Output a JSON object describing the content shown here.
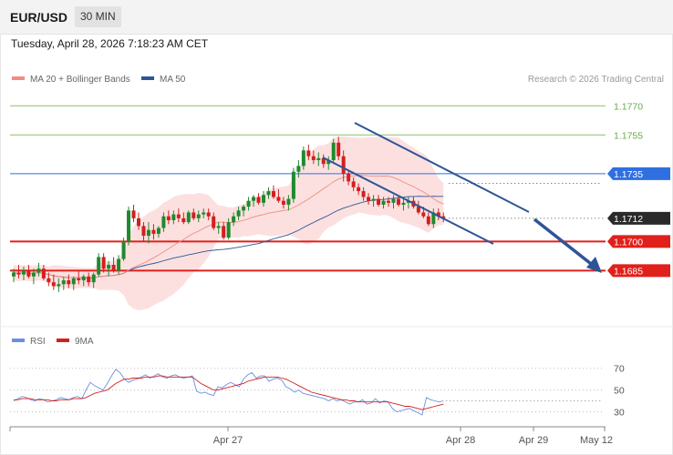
{
  "header": {
    "symbol": "EUR/USD",
    "timeframe": "30 MIN",
    "datetime": "Tuesday, April 28, 2026 7:18:23 AM CET"
  },
  "legend": {
    "ma20": "MA 20 + Bollinger Bands",
    "ma50": "MA 50",
    "copyright": "Research © 2026 Trading Central"
  },
  "colors": {
    "ma20": "#f28b82",
    "ma50": "#2d5596",
    "band": "#fbd6d6",
    "bull": "#1e8a2e",
    "bear": "#d21f1f",
    "resistance": "#8cc06a",
    "pivot": "#2f6fe0",
    "support": "#e0201b",
    "channel": "#2d5596",
    "rsi": "#6b8fe0",
    "rsi_ma": "#d21f1f"
  },
  "chart_data": [
    {
      "type": "candlestick",
      "symbol": "EUR/USD",
      "timeframe": "30 MIN",
      "x_tick_labels": [
        "Apr 27",
        "Apr 28",
        "Apr 29",
        "May 12"
      ],
      "ylim": [
        1.1665,
        1.178
      ],
      "levels": [
        {
          "value": 1.177,
          "label": "1.1770",
          "kind": "resistance"
        },
        {
          "value": 1.1755,
          "label": "1.1755",
          "kind": "resistance"
        },
        {
          "value": 1.1735,
          "label": "1.1735",
          "kind": "pivot"
        },
        {
          "value": 1.1712,
          "label": "1.1712",
          "kind": "last"
        },
        {
          "value": 1.17,
          "label": "1.1700",
          "kind": "support"
        },
        {
          "value": 1.1685,
          "label": "1.1685",
          "kind": "support"
        }
      ],
      "series": [
        {
          "name": "MA 20 + Bollinger Bands"
        },
        {
          "name": "MA 50"
        }
      ],
      "ohlc": [
        [
          1.1682,
          1.1686,
          1.1679,
          1.1684
        ],
        [
          1.1684,
          1.1688,
          1.1681,
          1.1683
        ],
        [
          1.1683,
          1.1687,
          1.168,
          1.1685
        ],
        [
          1.1685,
          1.1688,
          1.1681,
          1.1682
        ],
        [
          1.1682,
          1.1686,
          1.1678,
          1.1684
        ],
        [
          1.1684,
          1.1689,
          1.1682,
          1.1686
        ],
        [
          1.1686,
          1.1688,
          1.168,
          1.1681
        ],
        [
          1.1681,
          1.1684,
          1.1677,
          1.1679
        ],
        [
          1.1679,
          1.1683,
          1.1675,
          1.1677
        ],
        [
          1.1677,
          1.1681,
          1.1674,
          1.1678
        ],
        [
          1.1678,
          1.1682,
          1.1675,
          1.168
        ],
        [
          1.168,
          1.1683,
          1.1676,
          1.1678
        ],
        [
          1.1678,
          1.1682,
          1.1675,
          1.1681
        ],
        [
          1.1681,
          1.1685,
          1.1678,
          1.168
        ],
        [
          1.168,
          1.1683,
          1.1677,
          1.1682
        ],
        [
          1.1682,
          1.1684,
          1.1677,
          1.1679
        ],
        [
          1.1679,
          1.1684,
          1.1676,
          1.1683
        ],
        [
          1.1683,
          1.1694,
          1.1682,
          1.1692
        ],
        [
          1.1692,
          1.1694,
          1.1684,
          1.1686
        ],
        [
          1.1686,
          1.169,
          1.1682,
          1.1688
        ],
        [
          1.1688,
          1.1692,
          1.1684,
          1.1685
        ],
        [
          1.1685,
          1.1693,
          1.1683,
          1.1691
        ],
        [
          1.1691,
          1.1702,
          1.169,
          1.17
        ],
        [
          1.17,
          1.1718,
          1.1698,
          1.1716
        ],
        [
          1.1716,
          1.1719,
          1.171,
          1.1712
        ],
        [
          1.1712,
          1.1715,
          1.1706,
          1.1708
        ],
        [
          1.1708,
          1.171,
          1.17,
          1.1703
        ],
        [
          1.1703,
          1.171,
          1.1699,
          1.1706
        ],
        [
          1.1706,
          1.1709,
          1.1701,
          1.1704
        ],
        [
          1.1704,
          1.1708,
          1.1702,
          1.1707
        ],
        [
          1.1707,
          1.1715,
          1.1705,
          1.1713
        ],
        [
          1.1713,
          1.1716,
          1.1709,
          1.1711
        ],
        [
          1.1711,
          1.1716,
          1.1709,
          1.1714
        ],
        [
          1.1714,
          1.1717,
          1.171,
          1.1712
        ],
        [
          1.1712,
          1.1715,
          1.1709,
          1.171
        ],
        [
          1.171,
          1.1716,
          1.1709,
          1.1715
        ],
        [
          1.1715,
          1.1717,
          1.1711,
          1.1712
        ],
        [
          1.1712,
          1.1716,
          1.171,
          1.1714
        ],
        [
          1.1714,
          1.1717,
          1.1712,
          1.1715
        ],
        [
          1.1715,
          1.1717,
          1.1711,
          1.1713
        ],
        [
          1.1713,
          1.1715,
          1.1706,
          1.1707
        ],
        [
          1.1707,
          1.171,
          1.1704,
          1.1708
        ],
        [
          1.1708,
          1.171,
          1.1701,
          1.1702
        ],
        [
          1.1702,
          1.1712,
          1.1701,
          1.171
        ],
        [
          1.171,
          1.1715,
          1.1708,
          1.1713
        ],
        [
          1.1713,
          1.1718,
          1.1711,
          1.1716
        ],
        [
          1.1716,
          1.1719,
          1.1713,
          1.1718
        ],
        [
          1.1718,
          1.1723,
          1.1716,
          1.1721
        ],
        [
          1.1721,
          1.1724,
          1.1718,
          1.1723
        ],
        [
          1.1723,
          1.1725,
          1.1719,
          1.172
        ],
        [
          1.172,
          1.1726,
          1.1718,
          1.1724
        ],
        [
          1.1724,
          1.1728,
          1.1722,
          1.1726
        ],
        [
          1.1726,
          1.1729,
          1.1722,
          1.1723
        ],
        [
          1.1723,
          1.1727,
          1.172,
          1.1721
        ],
        [
          1.1721,
          1.1723,
          1.1717,
          1.1719
        ],
        [
          1.1719,
          1.1724,
          1.1716,
          1.1722
        ],
        [
          1.1722,
          1.1738,
          1.172,
          1.1736
        ],
        [
          1.1736,
          1.1742,
          1.1733,
          1.1739
        ],
        [
          1.1739,
          1.1749,
          1.1737,
          1.1747
        ],
        [
          1.1747,
          1.175,
          1.1742,
          1.1744
        ],
        [
          1.1744,
          1.1747,
          1.174,
          1.1742
        ],
        [
          1.1742,
          1.1746,
          1.1739,
          1.1743
        ],
        [
          1.1743,
          1.1745,
          1.1738,
          1.174
        ],
        [
          1.174,
          1.1744,
          1.1737,
          1.1742
        ],
        [
          1.1742,
          1.1753,
          1.174,
          1.1751
        ],
        [
          1.1751,
          1.1754,
          1.1742,
          1.1744
        ],
        [
          1.1744,
          1.1747,
          1.1731,
          1.1735
        ],
        [
          1.1735,
          1.1737,
          1.1729,
          1.1731
        ],
        [
          1.1731,
          1.1733,
          1.1726,
          1.1728
        ],
        [
          1.1728,
          1.173,
          1.1724,
          1.1726
        ],
        [
          1.1726,
          1.1728,
          1.1721,
          1.1723
        ],
        [
          1.1723,
          1.1725,
          1.1719,
          1.1721
        ],
        [
          1.1721,
          1.1724,
          1.1718,
          1.1722
        ],
        [
          1.1722,
          1.1724,
          1.1718,
          1.1719
        ],
        [
          1.1719,
          1.1723,
          1.1717,
          1.1721
        ],
        [
          1.1721,
          1.1723,
          1.1718,
          1.172
        ],
        [
          1.172,
          1.1724,
          1.1717,
          1.1722
        ],
        [
          1.1722,
          1.1724,
          1.1718,
          1.1719
        ],
        [
          1.1719,
          1.1722,
          1.1716,
          1.172
        ],
        [
          1.172,
          1.1723,
          1.1717,
          1.1721
        ],
        [
          1.1721,
          1.1723,
          1.1717,
          1.1718
        ],
        [
          1.1718,
          1.1721,
          1.1714,
          1.1715
        ],
        [
          1.1715,
          1.1718,
          1.1712,
          1.1713
        ],
        [
          1.1713,
          1.1715,
          1.1708,
          1.1709
        ],
        [
          1.1709,
          1.1717,
          1.1707,
          1.1715
        ],
        [
          1.1715,
          1.1717,
          1.1711,
          1.1713
        ],
        [
          1.1713,
          1.1715,
          1.171,
          1.1712
        ]
      ]
    },
    {
      "type": "line",
      "series": [
        {
          "name": "RSI"
        },
        {
          "name": "9MA"
        }
      ],
      "y_tick_labels": [
        70,
        50,
        30
      ],
      "ylim": [
        22,
        84
      ],
      "rsi": [
        40,
        42,
        44,
        43,
        41,
        40,
        42,
        41,
        39,
        40,
        41,
        43,
        42,
        41,
        43,
        44,
        42,
        50,
        57,
        54,
        52,
        50,
        56,
        63,
        69,
        66,
        60,
        57,
        59,
        60,
        62,
        64,
        61,
        63,
        65,
        62,
        61,
        63,
        64,
        62,
        61,
        62,
        63,
        49,
        47,
        48,
        46,
        45,
        53,
        52,
        55,
        57,
        55,
        53,
        60,
        64,
        66,
        61,
        63,
        63,
        58,
        60,
        61,
        59,
        53,
        51,
        48,
        50,
        47,
        46,
        45,
        44,
        43,
        42,
        40,
        42,
        40,
        41,
        39,
        37,
        39,
        39,
        41,
        37,
        38,
        42,
        38,
        40,
        39,
        33,
        30,
        31,
        32,
        33,
        31,
        29,
        27,
        43,
        41,
        40,
        39,
        40
      ],
      "rsi_ma": [
        41,
        41,
        42,
        42,
        42,
        41,
        41,
        41,
        41,
        40,
        40,
        41,
        41,
        41,
        42,
        42,
        42,
        43,
        45,
        47,
        48,
        49,
        50,
        53,
        56,
        58,
        60,
        60,
        61,
        61,
        61,
        62,
        62,
        62,
        63,
        63,
        62,
        62,
        62,
        62,
        62,
        62,
        62,
        59,
        56,
        54,
        52,
        50,
        50,
        51,
        52,
        53,
        54,
        55,
        56,
        58,
        59,
        60,
        61,
        62,
        62,
        62,
        62,
        61,
        60,
        58,
        56,
        54,
        52,
        50,
        48,
        47,
        46,
        45,
        44,
        43,
        42,
        41,
        41,
        40,
        40,
        39,
        39,
        39,
        39,
        39,
        39,
        39,
        39,
        38,
        37,
        36,
        35,
        35,
        34,
        33,
        32,
        33,
        34,
        35,
        36,
        37
      ]
    }
  ],
  "rsi_legend": {
    "rsi": "RSI",
    "ma": "9MA"
  }
}
